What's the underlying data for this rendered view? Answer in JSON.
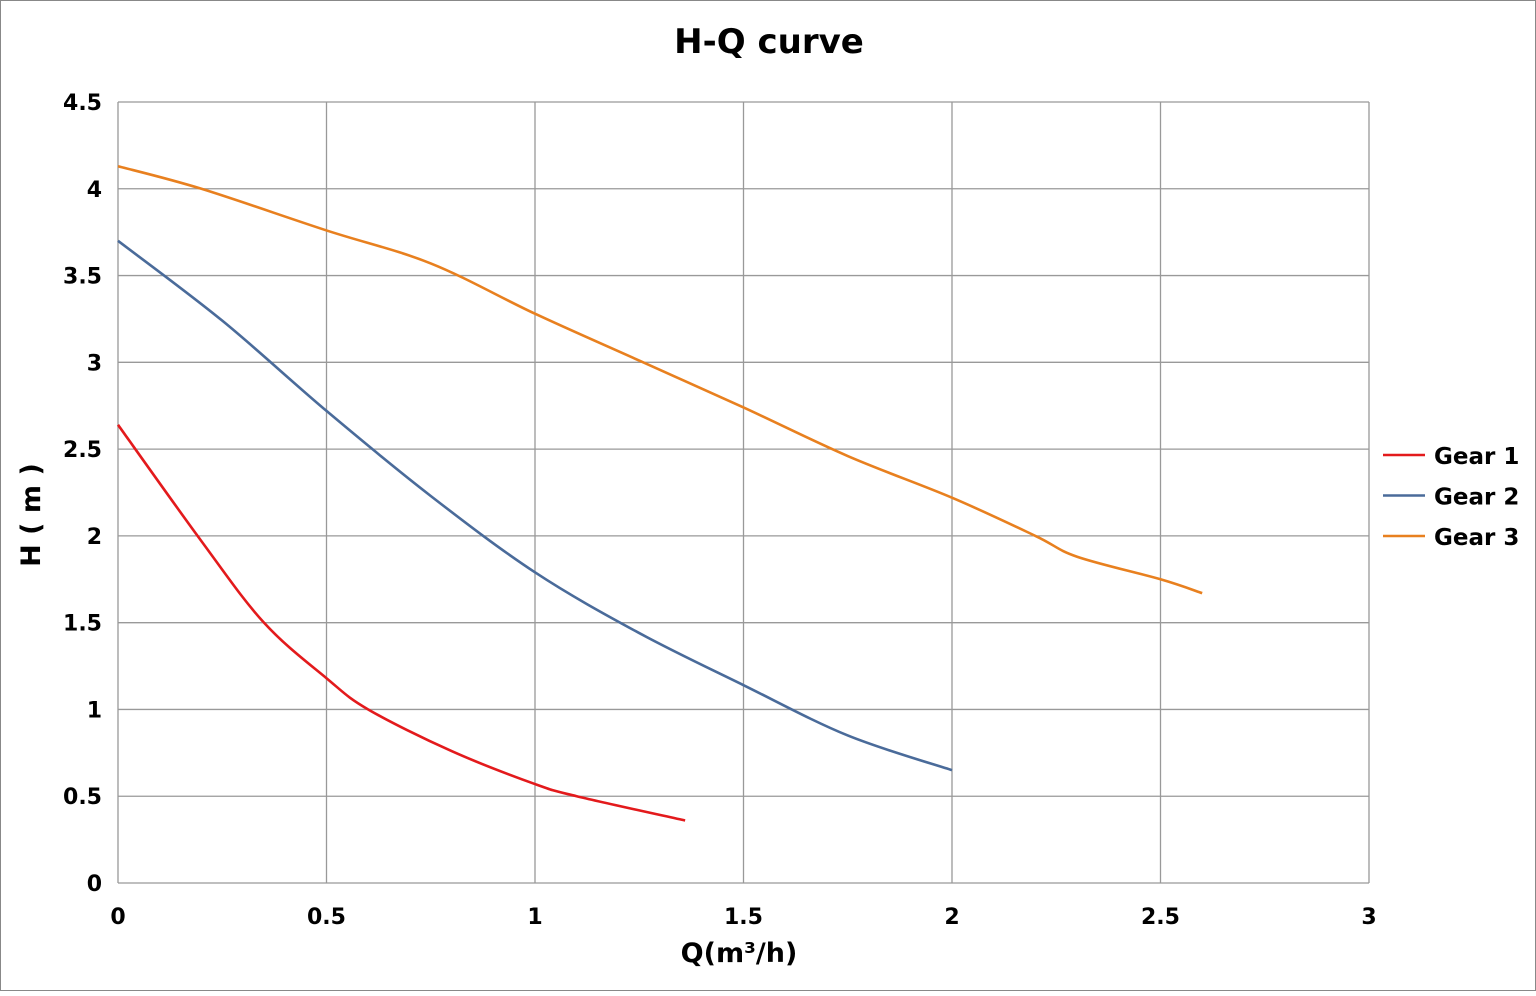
{
  "chart_data": {
    "type": "line",
    "title": "H-Q  curve",
    "xlabel": "Q(m³/h)",
    "ylabel": "H ( m )",
    "xlim": [
      0,
      3
    ],
    "ylim": [
      0,
      4.5
    ],
    "xticks": [
      "0",
      "0.5",
      "1",
      "1.5",
      "2",
      "2.5",
      "3"
    ],
    "yticks": [
      "0",
      "0.5",
      "1",
      "1.5",
      "2",
      "2.5",
      "3",
      "3.5",
      "4",
      "4.5"
    ],
    "grid": true,
    "legend_position": "right",
    "series": [
      {
        "name": "Gear 1",
        "color": "#e31a1c",
        "x": [
          0,
          0.2,
          0.35,
          0.5,
          0.6,
          0.8,
          1.0,
          1.1,
          1.36
        ],
        "y": [
          2.64,
          1.97,
          1.5,
          1.18,
          1.0,
          0.76,
          0.57,
          0.5,
          0.36
        ]
      },
      {
        "name": "Gear 2",
        "color": "#4a6b9a",
        "x": [
          0,
          0.25,
          0.5,
          0.75,
          1.0,
          1.25,
          1.5,
          1.75,
          2.0
        ],
        "y": [
          3.7,
          3.24,
          2.72,
          2.23,
          1.79,
          1.44,
          1.14,
          0.85,
          0.65
        ]
      },
      {
        "name": "Gear 3",
        "color": "#e8801f",
        "x": [
          0,
          0.2,
          0.5,
          0.75,
          1.0,
          1.25,
          1.5,
          1.75,
          2.0,
          2.2,
          2.3,
          2.5,
          2.6
        ],
        "y": [
          4.13,
          4.0,
          3.76,
          3.57,
          3.28,
          3.01,
          2.74,
          2.46,
          2.22,
          2.0,
          1.88,
          1.75,
          1.67
        ]
      }
    ]
  }
}
